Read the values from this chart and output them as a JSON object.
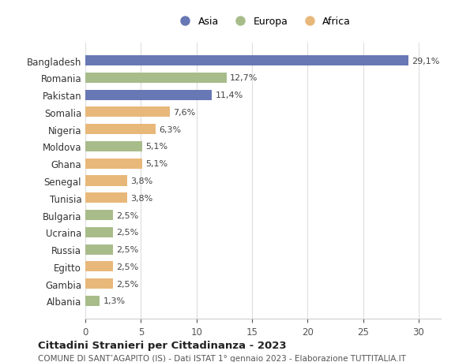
{
  "categories": [
    "Bangladesh",
    "Romania",
    "Pakistan",
    "Somalia",
    "Nigeria",
    "Moldova",
    "Ghana",
    "Senegal",
    "Tunisia",
    "Bulgaria",
    "Ucraina",
    "Russia",
    "Egitto",
    "Gambia",
    "Albania"
  ],
  "values": [
    29.1,
    12.7,
    11.4,
    7.6,
    6.3,
    5.1,
    5.1,
    3.8,
    3.8,
    2.5,
    2.5,
    2.5,
    2.5,
    2.5,
    1.3
  ],
  "labels": [
    "29,1%",
    "12,7%",
    "11,4%",
    "7,6%",
    "6,3%",
    "5,1%",
    "5,1%",
    "3,8%",
    "3,8%",
    "2,5%",
    "2,5%",
    "2,5%",
    "2,5%",
    "2,5%",
    "1,3%"
  ],
  "continents": [
    "Asia",
    "Europa",
    "Asia",
    "Africa",
    "Africa",
    "Europa",
    "Africa",
    "Africa",
    "Africa",
    "Europa",
    "Europa",
    "Europa",
    "Africa",
    "Africa",
    "Europa"
  ],
  "colors": {
    "Asia": "#6878b4",
    "Europa": "#a8bc8a",
    "Africa": "#e8b87a"
  },
  "xlim": [
    0,
    32
  ],
  "xticks": [
    0,
    5,
    10,
    15,
    20,
    25,
    30
  ],
  "title": "Cittadini Stranieri per Cittadinanza - 2023",
  "subtitle": "COMUNE DI SANT’AGAPITO (IS) - Dati ISTAT 1° gennaio 2023 - Elaborazione TUTTITALIA.IT",
  "background_color": "#ffffff",
  "grid_color": "#dddddd",
  "bar_height": 0.6
}
